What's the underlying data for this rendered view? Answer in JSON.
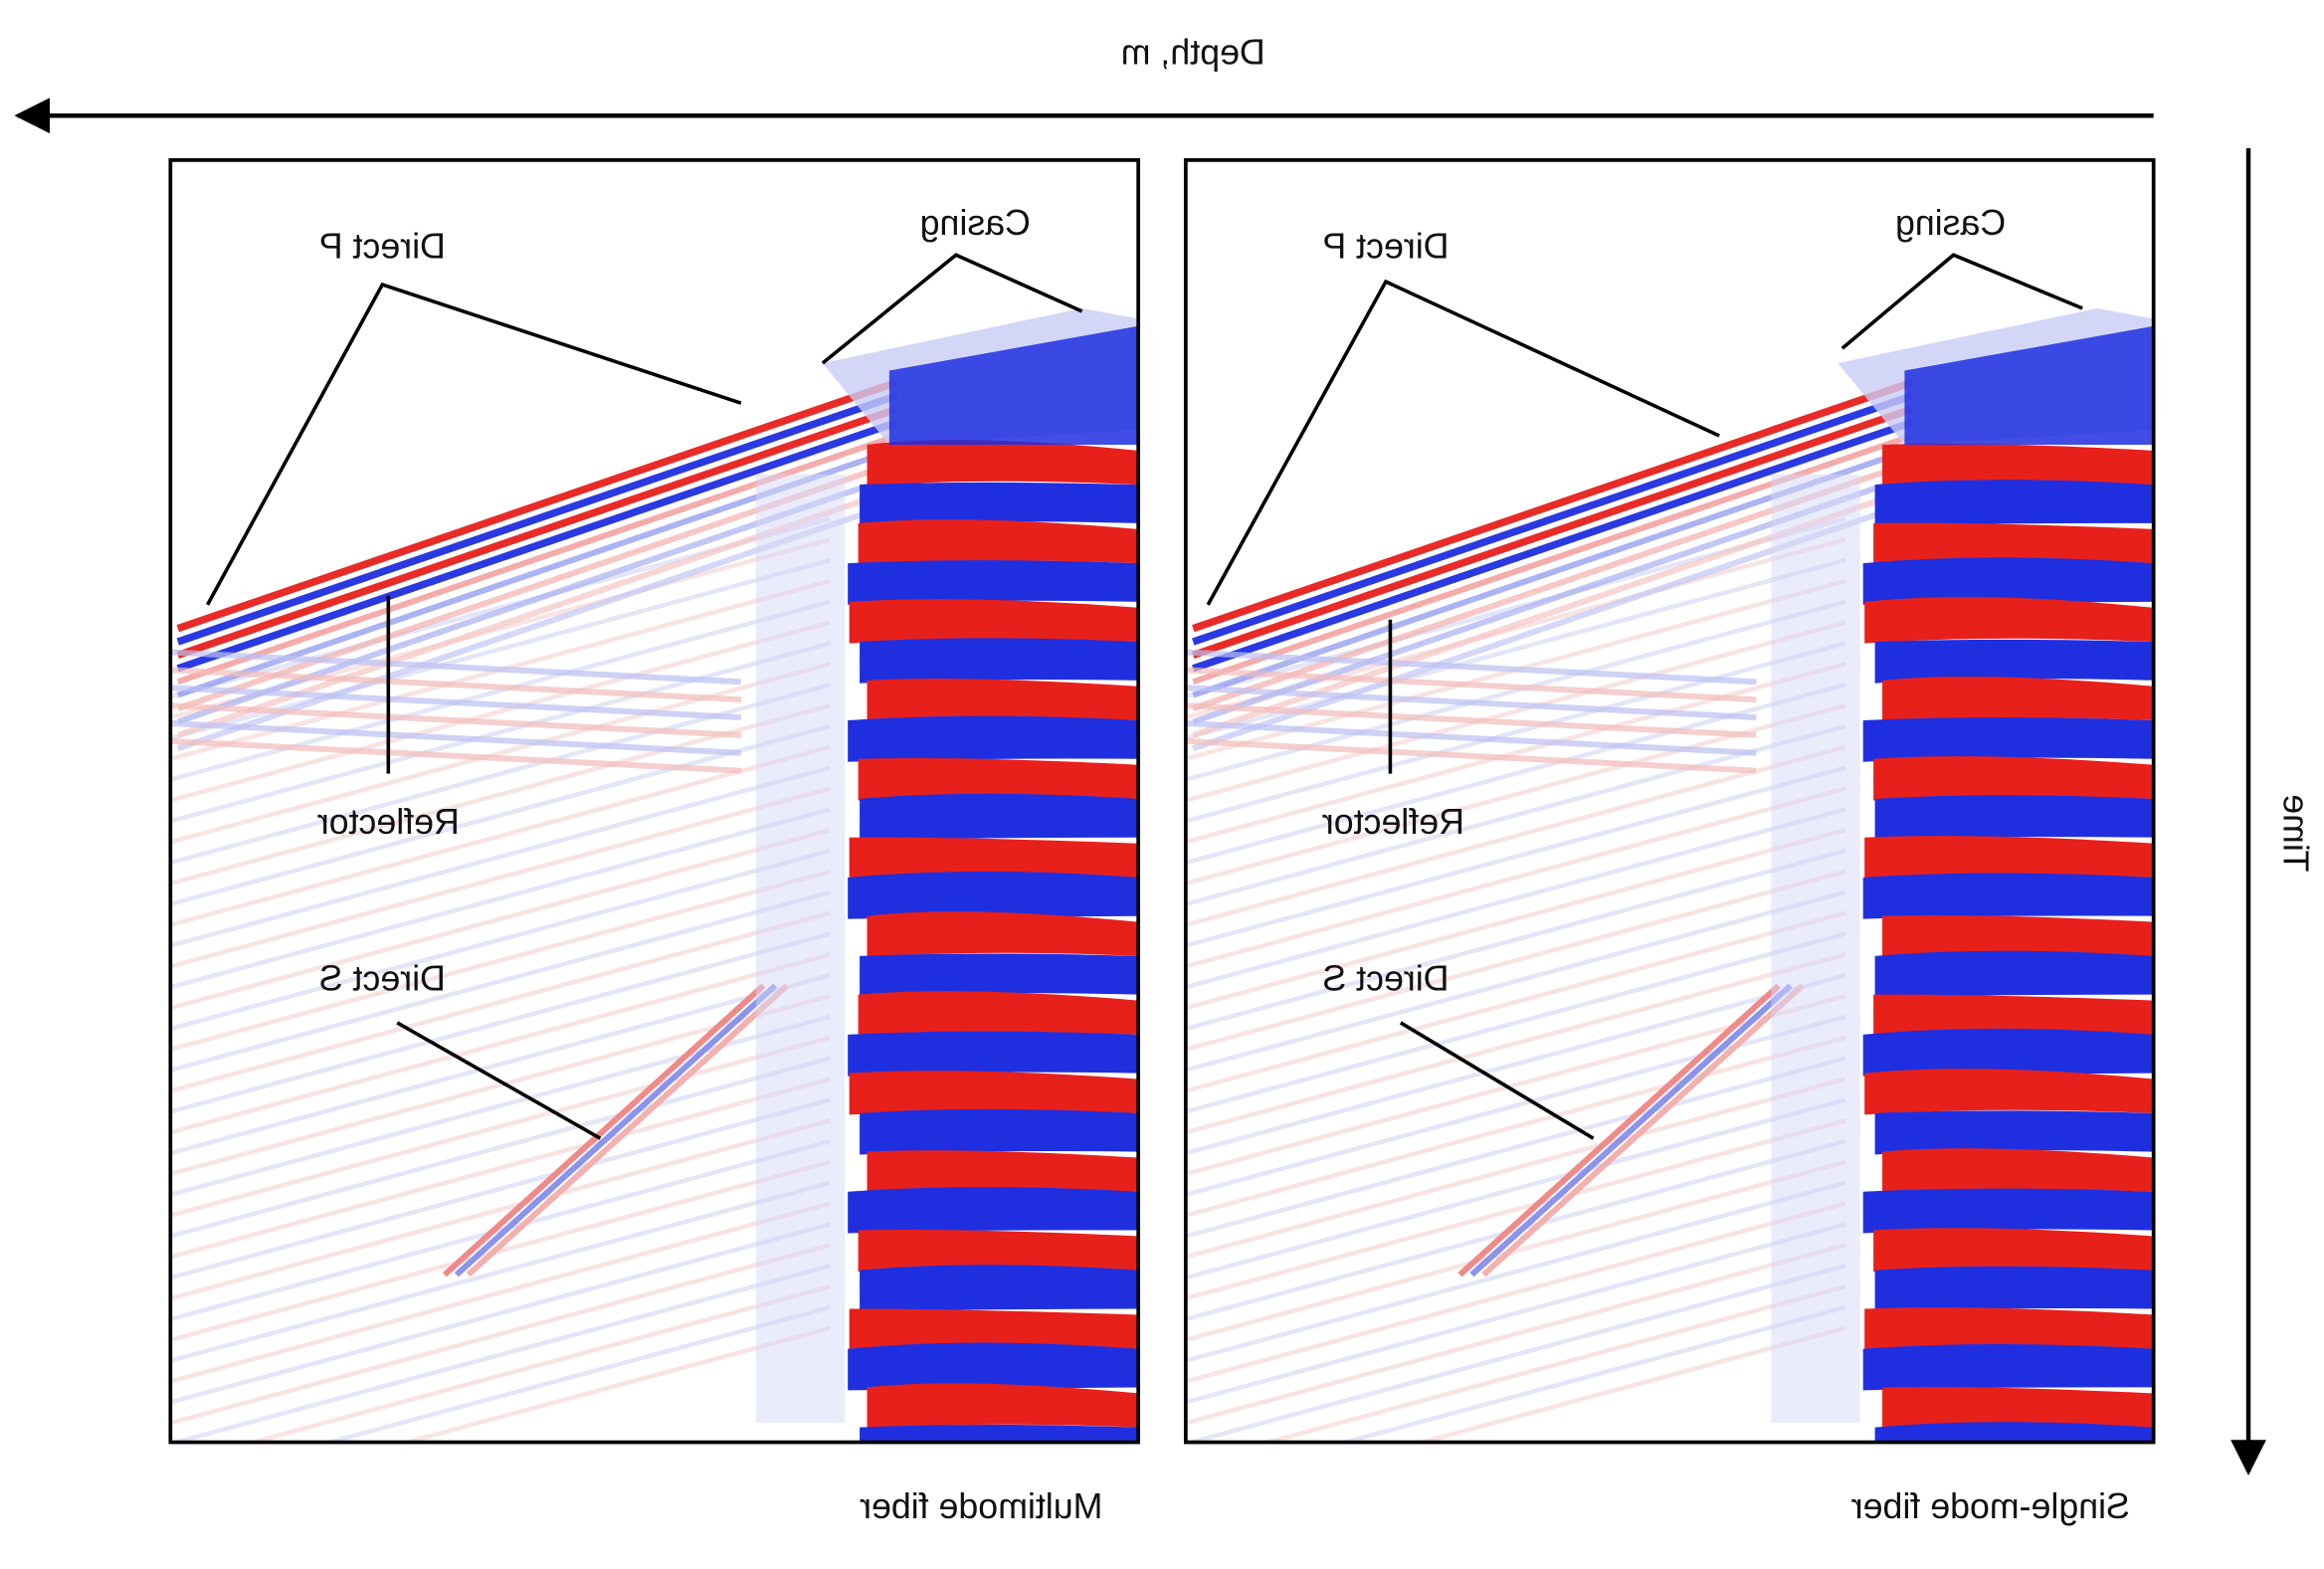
{
  "header": {
    "depth_label": "Depth, m",
    "time_label": "Time"
  },
  "panels": [
    {
      "caption": "Multimode fiber",
      "labels": {
        "casing": "Casing",
        "direct_p": "Direct P",
        "reflector": "Reflector",
        "direct_s": "Direct S"
      }
    },
    {
      "caption": "Single-mode fiber",
      "labels": {
        "casing": "Casing",
        "direct_p": "Direct P",
        "reflector": "Reflector",
        "direct_s": "Direct S"
      }
    }
  ]
}
